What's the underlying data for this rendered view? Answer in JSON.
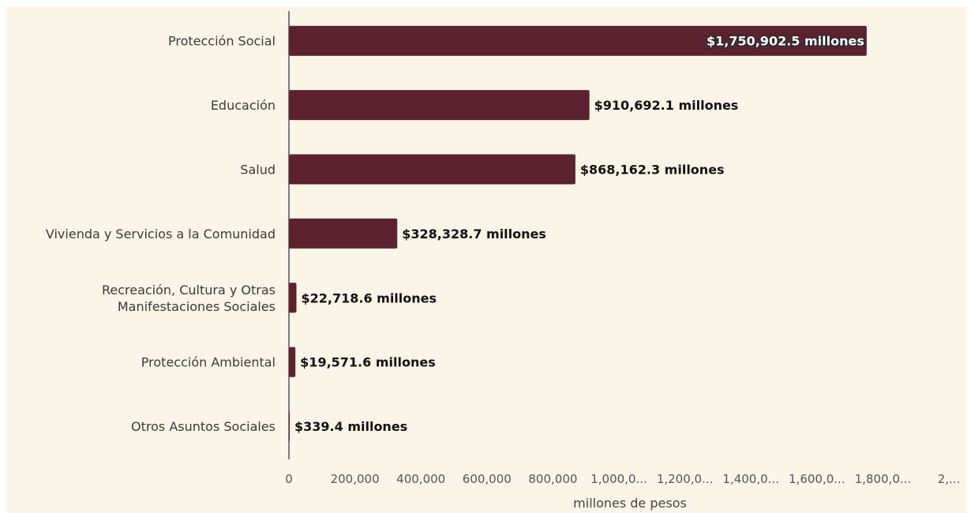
{
  "chart_data": {
    "type": "bar",
    "orientation": "horizontal",
    "categories": [
      [
        "Protección Social"
      ],
      [
        "Educación"
      ],
      [
        "Salud"
      ],
      [
        "Vivienda y Servicios a la Comunidad"
      ],
      [
        "Recreación, Cultura y Otras",
        "Manifestaciones Sociales"
      ],
      [
        "Protección Ambiental"
      ],
      [
        "Otros Asuntos Sociales"
      ]
    ],
    "values": [
      1750902.5,
      910692.1,
      868162.3,
      328328.7,
      22718.6,
      19571.6,
      339.4
    ],
    "value_labels": [
      "$1,750,902.5 millones",
      "$910,692.1 millones",
      "$868,162.3 millones",
      "$328,328.7 millones",
      "$22,718.6 millones",
      "$19,571.6 millones",
      "$339.4 millones"
    ],
    "x_ticks": [
      0,
      200000,
      400000,
      600000,
      800000,
      1000000,
      1200000,
      1400000,
      1600000,
      1800000,
      2000000
    ],
    "x_tick_labels": [
      "0",
      "200,000",
      "400,000",
      "600,000",
      "800,000",
      "1,000,0...",
      "1,200,0...",
      "1,400,0...",
      "1,600,0...",
      "1,800,0...",
      "2,..."
    ],
    "xlim": [
      0,
      2000000
    ],
    "xlabel": "millones de pesos",
    "ylabel": "",
    "title": "",
    "grid": false,
    "legend": "none",
    "colors": {
      "bar": "#5c2230",
      "background": "#faf5e8",
      "axis": "#555555"
    }
  }
}
